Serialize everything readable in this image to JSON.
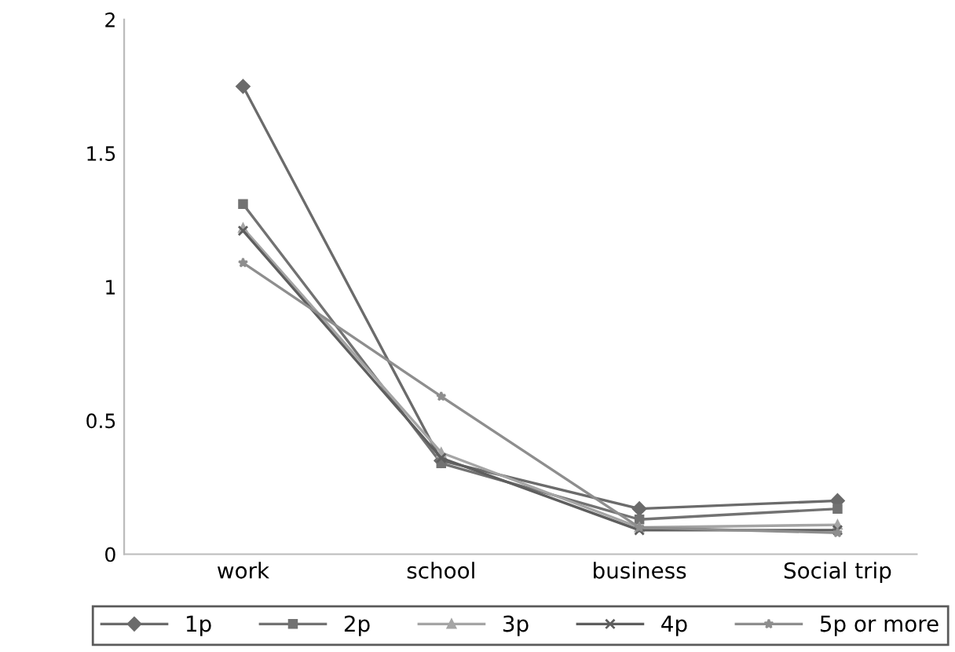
{
  "chart_data": {
    "type": "line",
    "categories": [
      "work",
      "school",
      "business",
      "Social trip"
    ],
    "series": [
      {
        "name": "1p",
        "color": "#6b6b6b",
        "marker": "diamond",
        "values": [
          1.75,
          0.35,
          0.17,
          0.2
        ]
      },
      {
        "name": "2p",
        "color": "#727272",
        "marker": "square",
        "values": [
          1.31,
          0.34,
          0.13,
          0.17
        ]
      },
      {
        "name": "3p",
        "color": "#a5a5a5",
        "marker": "triangle",
        "values": [
          1.22,
          0.38,
          0.1,
          0.11
        ]
      },
      {
        "name": "4p",
        "color": "#5e5e5e",
        "marker": "cross",
        "values": [
          1.21,
          0.36,
          0.09,
          0.09
        ]
      },
      {
        "name": "5p or more",
        "color": "#8e8e8e",
        "marker": "star",
        "values": [
          1.09,
          0.59,
          0.1,
          0.08
        ]
      }
    ],
    "ylim": [
      0,
      2
    ],
    "yticks": [
      0,
      0.5,
      1,
      1.5,
      2
    ],
    "grid": false,
    "legend": "bottom"
  }
}
